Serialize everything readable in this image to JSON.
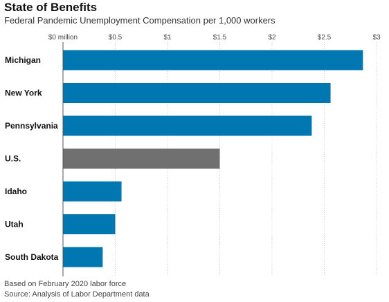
{
  "colors": {
    "bar": "#0077b0",
    "highlight_bar": "#707070",
    "grid": "#cccccc",
    "axis": "#555555"
  },
  "chart_data": {
    "type": "bar",
    "orientation": "horizontal",
    "title": "State of Benefits",
    "subtitle": "Federal Pandemic Unemployment Compensation per 1,000 workers",
    "categories": [
      "Michigan",
      "New York",
      "Pennsylvania",
      "U.S.",
      "Idaho",
      "Utah",
      "South Dakota"
    ],
    "values": [
      2.87,
      2.56,
      2.38,
      1.5,
      0.56,
      0.5,
      0.38
    ],
    "highlight": [
      "U.S."
    ],
    "unit": "million",
    "xlim": [
      0,
      3
    ],
    "xticks": [
      0,
      0.5,
      1,
      1.5,
      2,
      2.5,
      3
    ],
    "xtick_labels": [
      "$0 million",
      "$0.5",
      "$1",
      "$1.5",
      "$2",
      "$2.5",
      "$3"
    ],
    "tick_position": "top",
    "grid": true
  },
  "footnotes": {
    "note": "Based on February 2020 labor force",
    "source": "Source: Analysis of Labor Department data"
  }
}
